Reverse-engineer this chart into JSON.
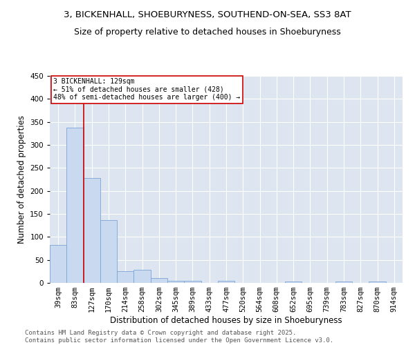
{
  "title_line1": "3, BICKENHALL, SHOEBURYNESS, SOUTHEND-ON-SEA, SS3 8AT",
  "title_line2": "Size of property relative to detached houses in Shoeburyness",
  "xlabel": "Distribution of detached houses by size in Shoeburyness",
  "ylabel": "Number of detached properties",
  "categories": [
    "39sqm",
    "83sqm",
    "127sqm",
    "170sqm",
    "214sqm",
    "258sqm",
    "302sqm",
    "345sqm",
    "389sqm",
    "433sqm",
    "477sqm",
    "520sqm",
    "564sqm",
    "608sqm",
    "652sqm",
    "695sqm",
    "739sqm",
    "783sqm",
    "827sqm",
    "870sqm",
    "914sqm"
  ],
  "bar_heights": [
    83,
    337,
    228,
    137,
    25,
    28,
    10,
    5,
    5,
    0,
    5,
    0,
    0,
    0,
    3,
    0,
    0,
    3,
    0,
    3,
    0
  ],
  "bar_color": "#c9d9f0",
  "bar_edge_color": "#7ba3d4",
  "vline_x_index": 2,
  "vline_color": "#cc0000",
  "annotation_text": "3 BICKENHALL: 129sqm\n← 51% of detached houses are smaller (428)\n48% of semi-detached houses are larger (400) →",
  "annotation_box_color": "#ffffff",
  "annotation_box_edge": "#cc0000",
  "ylim": [
    0,
    450
  ],
  "yticks": [
    0,
    50,
    100,
    150,
    200,
    250,
    300,
    350,
    400,
    450
  ],
  "background_color": "#dde5f0",
  "footer_line1": "Contains HM Land Registry data © Crown copyright and database right 2025.",
  "footer_line2": "Contains public sector information licensed under the Open Government Licence v3.0.",
  "title_fontsize": 9.5,
  "subtitle_fontsize": 9,
  "axis_label_fontsize": 8.5,
  "tick_fontsize": 7.5,
  "annotation_fontsize": 7,
  "footer_fontsize": 6.5
}
